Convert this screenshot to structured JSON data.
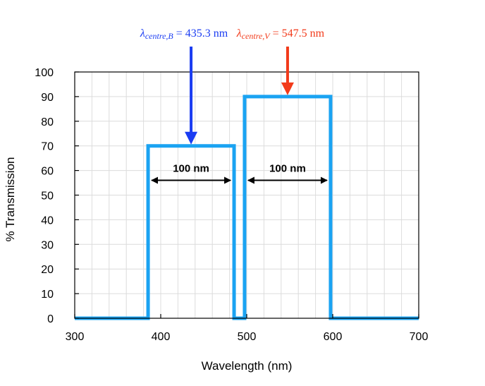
{
  "chart_data": {
    "type": "line",
    "xlabel": "Wavelength (nm)",
    "ylabel": "% Transmission",
    "xlim": [
      300,
      700
    ],
    "ylim": [
      0,
      100
    ],
    "x_ticks": [
      "300",
      "400",
      "500",
      "600",
      "700"
    ],
    "y_ticks": [
      "0",
      "10",
      "20",
      "30",
      "40",
      "50",
      "60",
      "70",
      "80",
      "90",
      "100"
    ],
    "grid": true,
    "series_color": "#1aa3f2",
    "series": [
      {
        "x": [
          300,
          385.3,
          385.3,
          485.3,
          485.3,
          497.5,
          497.5,
          597.5,
          597.5,
          700
        ],
        "y": [
          0,
          0,
          70,
          70,
          0,
          0,
          90,
          90,
          0,
          0
        ]
      }
    ],
    "annotations": {
      "b_filter": {
        "lambda": "λ",
        "subscript": "centre,B",
        "text": " = 435.3 nm",
        "x": 435.3,
        "y": 70,
        "color": "#1a3cf2"
      },
      "v_filter": {
        "lambda": "λ",
        "subscript": "centre,V",
        "text": " = 547.5 nm",
        "x": 547.5,
        "y": 90,
        "color": "#f23a1a"
      },
      "b_width": {
        "label": "100 nm",
        "x_from": 385.3,
        "x_to": 485.3,
        "y": 56
      },
      "v_width": {
        "label": "100 nm",
        "x_from": 497.5,
        "x_to": 597.5,
        "y": 56
      }
    }
  }
}
